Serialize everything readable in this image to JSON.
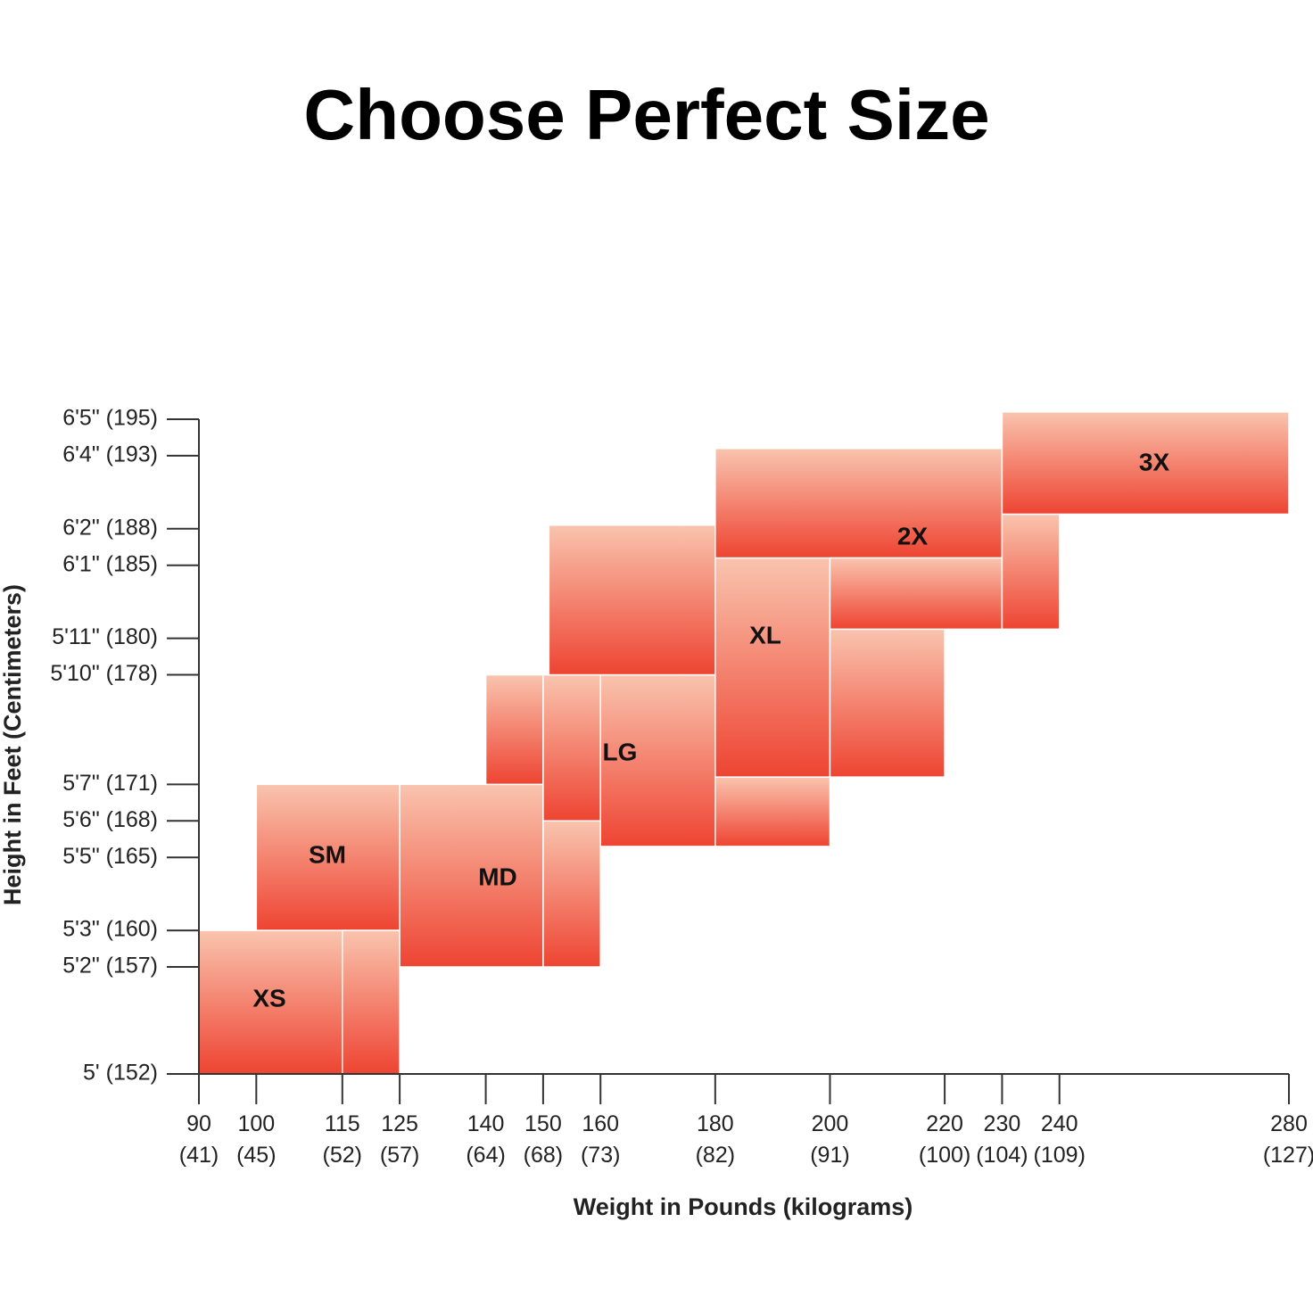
{
  "chart_data": {
    "type": "region",
    "title": "Choose Perfect Size",
    "xlabel": "Weight in Pounds (kilograms)",
    "ylabel": "Height in Feet (Centimeters)",
    "xlim": [
      90,
      280
    ],
    "ylim": [
      60,
      77
    ],
    "xticks": [
      {
        "value": 90,
        "label": "90 (41)"
      },
      {
        "value": 100,
        "label": "100 (45)"
      },
      {
        "value": 115,
        "label": "115 (52)"
      },
      {
        "value": 125,
        "label": "125 (57)"
      },
      {
        "value": 140,
        "label": "140 (64)"
      },
      {
        "value": 150,
        "label": "150 (68)"
      },
      {
        "value": 160,
        "label": "160 (73)"
      },
      {
        "value": 180,
        "label": "180 (82)"
      },
      {
        "value": 200,
        "label": "200 (91)"
      },
      {
        "value": 220,
        "label": "220 (100)"
      },
      {
        "value": 230,
        "label": "230 (104)"
      },
      {
        "value": 240,
        "label": "240 (109)"
      },
      {
        "value": 280,
        "label": "280 (127)"
      }
    ],
    "yticks": [
      {
        "value": 60,
        "label": "5' (152)"
      },
      {
        "value": 62,
        "label": "5'2\" (157)"
      },
      {
        "value": 63,
        "label": "5'3\" (160)"
      },
      {
        "value": 65,
        "label": "5'5\" (165)"
      },
      {
        "value": 66,
        "label": "5'6\" (168)"
      },
      {
        "value": 67,
        "label": "5'7\" (171)"
      },
      {
        "value": 70,
        "label": "5'10\" (178)"
      },
      {
        "value": 71,
        "label": "5'11\" (180)"
      },
      {
        "value": 73,
        "label": "6'1\" (185)"
      },
      {
        "value": 74,
        "label": "6'2\" (188)"
      },
      {
        "value": 76,
        "label": "6'4\" (193)"
      },
      {
        "value": 77,
        "label": "6'5\" (195)"
      }
    ],
    "regions": [
      {
        "name": "XS",
        "rects": [
          [
            90,
            115,
            60,
            63
          ]
        ]
      },
      {
        "name": "SM",
        "rects": [
          [
            100,
            125,
            63,
            67
          ],
          [
            115,
            125,
            60,
            63
          ]
        ]
      },
      {
        "name": "MD",
        "rects": [
          [
            125,
            150,
            62,
            67
          ],
          [
            150,
            160,
            62,
            66
          ]
        ]
      },
      {
        "name": "LG",
        "rects": [
          [
            140,
            150,
            67,
            70
          ],
          [
            150,
            160,
            66,
            70
          ],
          [
            160,
            180,
            65.3,
            70
          ],
          [
            180,
            200,
            65.3,
            67.2
          ]
        ]
      },
      {
        "name": "XL",
        "rects": [
          [
            151,
            180,
            70,
            74.1
          ],
          [
            180,
            200,
            67.2,
            73.2
          ],
          [
            200,
            220,
            67.2,
            71.25
          ]
        ]
      },
      {
        "name": "2X",
        "rects": [
          [
            180,
            230,
            73.2,
            76.2
          ],
          [
            200,
            230,
            71.25,
            73.2
          ],
          [
            230,
            240,
            71.25,
            74.4
          ]
        ]
      },
      {
        "name": "3X",
        "rects": [
          [
            230,
            280,
            74.4,
            77.2
          ]
        ]
      }
    ],
    "color_top": "#f9c4ae",
    "color_bottom": "#ee4432"
  }
}
